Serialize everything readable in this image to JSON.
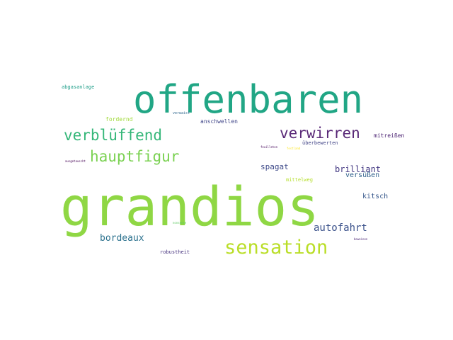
{
  "word_cloud": {
    "words": [
      {
        "id": "grandios",
        "text": "grandios",
        "color": "#8fd744"
      },
      {
        "id": "offenbaren",
        "text": "offenbaren",
        "color": "#21a685"
      },
      {
        "id": "sensation",
        "text": "sensation",
        "color": "#bade28"
      },
      {
        "id": "verblueffend",
        "text": "verblüffend",
        "color": "#35b779"
      },
      {
        "id": "verwirren",
        "text": "verwirren",
        "color": "#5a2a78"
      },
      {
        "id": "hauptfigur",
        "text": "hauptfigur",
        "color": "#7ad151"
      },
      {
        "id": "autofahrt",
        "text": "autofahrt",
        "color": "#3b528b"
      },
      {
        "id": "bordeaux",
        "text": "bordeaux",
        "color": "#2c728e"
      },
      {
        "id": "brilliant",
        "text": "brilliant",
        "color": "#443983"
      },
      {
        "id": "spagat",
        "text": "spagat",
        "color": "#3e4a89"
      },
      {
        "id": "kitsch",
        "text": "kitsch",
        "color": "#38598c"
      },
      {
        "id": "versuessen",
        "text": "versüßen",
        "color": "#33638d"
      },
      {
        "id": "mitreissen",
        "text": "mitreißen",
        "color": "#481f70"
      },
      {
        "id": "anschwellen",
        "text": "anschwellen",
        "color": "#404688"
      },
      {
        "id": "abgasanlage",
        "text": "abgasanlage",
        "color": "#1f9e89"
      },
      {
        "id": "fordernd",
        "text": "fordernd",
        "color": "#a0da39"
      },
      {
        "id": "ueberbewerten",
        "text": "überbewerten",
        "color": "#414487"
      },
      {
        "id": "robustheit",
        "text": "robustheit",
        "color": "#46327e"
      },
      {
        "id": "mittelweg",
        "text": "mittelweg",
        "color": "#b5de2b"
      },
      {
        "id": "verwaist",
        "text": "verwaist",
        "color": "#31688e"
      },
      {
        "id": "ausgetauscht",
        "text": "ausgetauscht",
        "color": "#440154"
      },
      {
        "id": "feuilleton",
        "text": "feuilleton",
        "color": "#46085c"
      },
      {
        "id": "festland",
        "text": "festland",
        "color": "#fde725"
      },
      {
        "id": "nonsense",
        "text": "nonsense",
        "color": "#5ec962"
      },
      {
        "id": "beweinen",
        "text": "beweinen",
        "color": "#482173"
      }
    ]
  }
}
